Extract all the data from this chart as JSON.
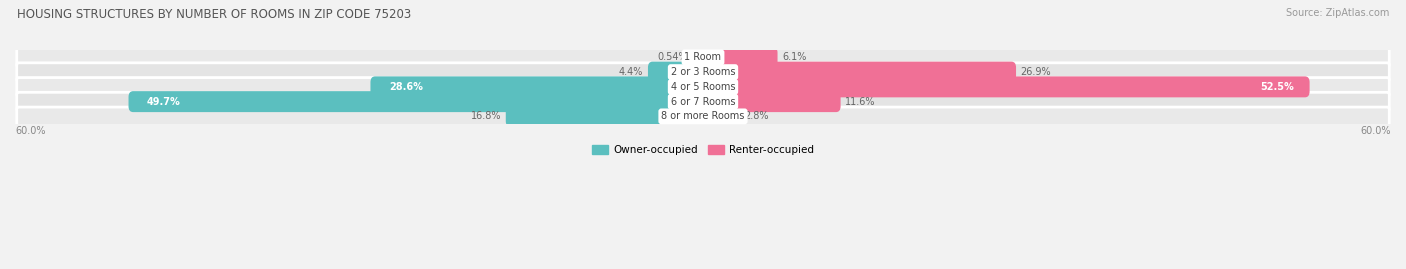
{
  "title": "HOUSING STRUCTURES BY NUMBER OF ROOMS IN ZIP CODE 75203",
  "source": "Source: ZipAtlas.com",
  "categories": [
    "1 Room",
    "2 or 3 Rooms",
    "4 or 5 Rooms",
    "6 or 7 Rooms",
    "8 or more Rooms"
  ],
  "owner_values": [
    0.54,
    4.4,
    28.6,
    49.7,
    16.8
  ],
  "renter_values": [
    6.1,
    26.9,
    52.5,
    11.6,
    2.8
  ],
  "owner_color": "#5bbfbf",
  "renter_color": "#f07096",
  "owner_label": "Owner-occupied",
  "renter_label": "Renter-occupied",
  "axis_max": 60.0,
  "axis_label": "60.0%",
  "background_color": "#f2f2f2",
  "row_color_even": "#e9e9e9",
  "row_color_odd": "#e4e4e4",
  "title_fontsize": 8.5,
  "source_fontsize": 7,
  "label_fontsize": 7,
  "category_fontsize": 7,
  "axis_fontsize": 7,
  "legend_fontsize": 7.5,
  "inside_label_threshold_owner": 20,
  "inside_label_threshold_renter": 45
}
